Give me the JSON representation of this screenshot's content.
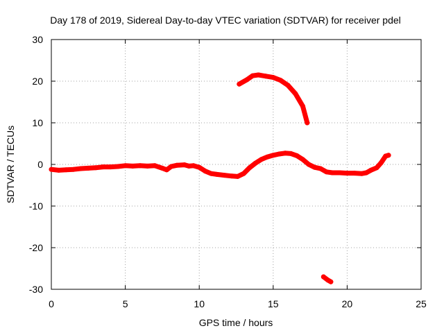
{
  "colors": {
    "series": "#ff0000",
    "grid": "#a0a0a0",
    "axis": "#000000"
  },
  "chart_data": {
    "type": "scatter",
    "title": "Day 178 of 2019, Sidereal Day-to-day VTEC variation (SDTVAR) for receiver pdel",
    "xlabel": "GPS time / hours",
    "ylabel": "SDTVAR / TECUs",
    "xlim": [
      0,
      25
    ],
    "ylim": [
      -30,
      30
    ],
    "xticks": [
      0,
      5,
      10,
      15,
      20,
      25
    ],
    "yticks": [
      -30,
      -20,
      -10,
      0,
      10,
      20,
      30
    ],
    "grid": true,
    "series": [
      {
        "name": "main",
        "points": [
          [
            0.0,
            -1.2
          ],
          [
            0.5,
            -1.4
          ],
          [
            1.0,
            -1.3
          ],
          [
            1.5,
            -1.2
          ],
          [
            2.0,
            -1.0
          ],
          [
            2.5,
            -0.9
          ],
          [
            3.0,
            -0.8
          ],
          [
            3.5,
            -0.6
          ],
          [
            4.0,
            -0.6
          ],
          [
            4.5,
            -0.5
          ],
          [
            5.0,
            -0.3
          ],
          [
            5.5,
            -0.4
          ],
          [
            6.0,
            -0.3
          ],
          [
            6.5,
            -0.4
          ],
          [
            7.0,
            -0.3
          ],
          [
            7.5,
            -0.9
          ],
          [
            7.8,
            -1.3
          ],
          [
            8.1,
            -0.5
          ],
          [
            8.5,
            -0.2
          ],
          [
            9.0,
            -0.1
          ],
          [
            9.3,
            -0.4
          ],
          [
            9.6,
            -0.3
          ],
          [
            10.0,
            -0.7
          ],
          [
            10.4,
            -1.6
          ],
          [
            10.8,
            -2.2
          ],
          [
            11.2,
            -2.4
          ],
          [
            11.7,
            -2.6
          ],
          [
            12.2,
            -2.8
          ],
          [
            12.6,
            -2.9
          ],
          [
            13.0,
            -2.2
          ],
          [
            13.4,
            -0.8
          ],
          [
            13.8,
            0.3
          ],
          [
            14.2,
            1.2
          ],
          [
            14.6,
            1.8
          ],
          [
            15.0,
            2.2
          ],
          [
            15.4,
            2.5
          ],
          [
            15.8,
            2.7
          ],
          [
            16.2,
            2.6
          ],
          [
            16.6,
            2.1
          ],
          [
            17.0,
            1.2
          ],
          [
            17.4,
            0.0
          ],
          [
            17.8,
            -0.7
          ],
          [
            18.2,
            -1.0
          ],
          [
            18.6,
            -1.8
          ],
          [
            19.0,
            -2.0
          ],
          [
            19.5,
            -2.0
          ],
          [
            20.0,
            -2.1
          ],
          [
            20.5,
            -2.1
          ],
          [
            21.0,
            -2.2
          ],
          [
            21.3,
            -2.0
          ],
          [
            21.6,
            -1.4
          ],
          [
            22.0,
            -0.8
          ],
          [
            22.3,
            0.4
          ],
          [
            22.6,
            2.0
          ],
          [
            22.8,
            2.2
          ]
        ]
      },
      {
        "name": "upper-arc",
        "points": [
          [
            12.7,
            19.3
          ],
          [
            13.2,
            20.3
          ],
          [
            13.6,
            21.3
          ],
          [
            14.0,
            21.5
          ],
          [
            14.5,
            21.2
          ],
          [
            15.0,
            20.9
          ],
          [
            15.5,
            20.2
          ],
          [
            16.0,
            19.0
          ],
          [
            16.5,
            17.0
          ],
          [
            17.0,
            14.0
          ],
          [
            17.3,
            10.0
          ]
        ]
      },
      {
        "name": "lower-fragment",
        "points": [
          [
            18.4,
            -27.0
          ],
          [
            18.7,
            -27.8
          ],
          [
            18.9,
            -28.2
          ]
        ]
      }
    ]
  }
}
